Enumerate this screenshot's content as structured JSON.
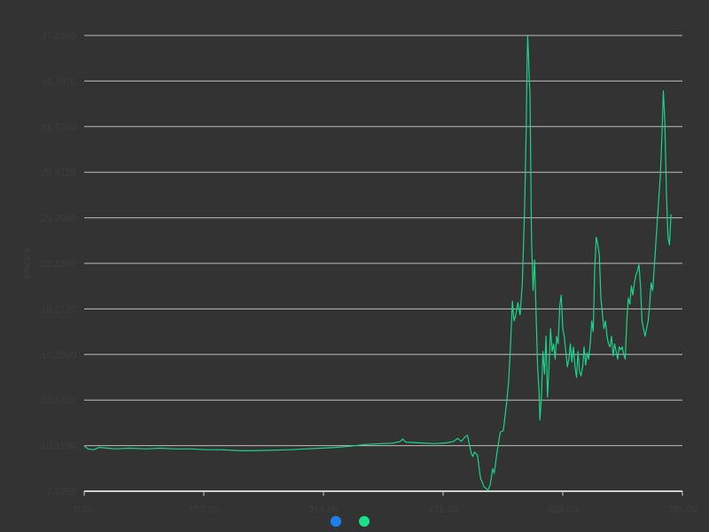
{
  "chart_data": {
    "type": "line",
    "title": "",
    "xlabel": "",
    "ylabel": "SPICE $",
    "xlim": [
      0,
      785
    ],
    "ylim": [
      7.3266,
      37.2386
    ],
    "grid": true,
    "y_ticks": [
      "7.3266",
      "10.3190",
      "13.3430",
      "16.3590",
      "19.2720",
      "22.3360",
      "25.2960",
      "28.3120",
      "31.3240",
      "34.2870",
      "37.2386"
    ],
    "x_ticks": [
      "0.00",
      "157.00",
      "314.00",
      "471.00",
      "628.00",
      "785.00"
    ],
    "legend": {
      "position": "bottom-center",
      "markers": [
        {
          "color": "#1a82f0"
        },
        {
          "color": "#19e08a"
        }
      ]
    },
    "colors": {
      "background": "#333333",
      "grid": "#bdbdbd",
      "line": "#19d48a",
      "tick_text": "#3d3d3d"
    },
    "series": [
      {
        "color": "#19d48a",
        "points": [
          [
            0,
            10.3
          ],
          [
            5,
            10.1
          ],
          [
            12,
            10.05
          ],
          [
            20,
            10.2
          ],
          [
            40,
            10.1
          ],
          [
            60,
            10.15
          ],
          [
            80,
            10.1
          ],
          [
            100,
            10.15
          ],
          [
            120,
            10.1
          ],
          [
            140,
            10.1
          ],
          [
            160,
            10.05
          ],
          [
            180,
            10.05
          ],
          [
            200,
            10.0
          ],
          [
            210,
            9.98
          ],
          [
            230,
            10.0
          ],
          [
            250,
            10.02
          ],
          [
            270,
            10.05
          ],
          [
            290,
            10.1
          ],
          [
            310,
            10.15
          ],
          [
            330,
            10.2
          ],
          [
            350,
            10.28
          ],
          [
            370,
            10.4
          ],
          [
            390,
            10.45
          ],
          [
            405,
            10.48
          ],
          [
            415,
            10.6
          ],
          [
            418,
            10.75
          ],
          [
            422,
            10.55
          ],
          [
            440,
            10.5
          ],
          [
            460,
            10.45
          ],
          [
            475,
            10.5
          ],
          [
            485,
            10.6
          ],
          [
            490,
            10.8
          ],
          [
            495,
            10.6
          ],
          [
            500,
            10.9
          ],
          [
            503,
            11.0
          ],
          [
            505,
            10.5
          ],
          [
            508,
            9.8
          ],
          [
            510,
            9.6
          ],
          [
            512,
            9.9
          ],
          [
            516,
            9.7
          ],
          [
            520,
            8.2
          ],
          [
            525,
            7.6
          ],
          [
            530,
            7.4
          ],
          [
            533,
            7.8
          ],
          [
            536,
            8.8
          ],
          [
            538,
            8.5
          ],
          [
            542,
            10.0
          ],
          [
            546,
            11.2
          ],
          [
            550,
            11.3
          ],
          [
            554,
            13.0
          ],
          [
            557,
            14.5
          ],
          [
            559,
            16.5
          ],
          [
            562,
            19.8
          ],
          [
            564,
            18.5
          ],
          [
            566,
            18.8
          ],
          [
            569,
            19.7
          ],
          [
            572,
            18.9
          ],
          [
            575,
            21.0
          ],
          [
            578,
            26.0
          ],
          [
            580,
            31.0
          ],
          [
            581,
            35.0
          ],
          [
            582,
            37.2
          ],
          [
            583,
            36.0
          ],
          [
            584,
            34.3
          ],
          [
            585,
            33.5
          ],
          [
            587,
            24.0
          ],
          [
            589,
            20.5
          ],
          [
            591,
            22.5
          ],
          [
            593,
            19.0
          ],
          [
            595,
            15.5
          ],
          [
            597,
            13.8
          ],
          [
            598,
            12.0
          ],
          [
            600,
            13.5
          ],
          [
            602,
            16.5
          ],
          [
            604,
            15.0
          ],
          [
            606,
            17.5
          ],
          [
            608,
            13.5
          ],
          [
            610,
            15.5
          ],
          [
            612,
            18.0
          ],
          [
            614,
            16.5
          ],
          [
            616,
            17.0
          ],
          [
            618,
            16.0
          ],
          [
            620,
            17.5
          ],
          [
            622,
            17.0
          ],
          [
            624,
            19.5
          ],
          [
            626,
            20.2
          ],
          [
            628,
            18.0
          ],
          [
            630,
            17.5
          ],
          [
            632,
            16.5
          ],
          [
            634,
            15.5
          ],
          [
            636,
            16.0
          ],
          [
            638,
            17.0
          ],
          [
            640,
            15.8
          ],
          [
            642,
            16.8
          ],
          [
            644,
            15.5
          ],
          [
            646,
            14.8
          ],
          [
            648,
            16.5
          ],
          [
            650,
            15.2
          ],
          [
            652,
            14.9
          ],
          [
            654,
            15.5
          ],
          [
            656,
            16.8
          ],
          [
            658,
            15.6
          ],
          [
            660,
            16.4
          ],
          [
            662,
            16.0
          ],
          [
            664,
            17.0
          ],
          [
            666,
            18.5
          ],
          [
            668,
            17.8
          ],
          [
            670,
            22.0
          ],
          [
            672,
            24.0
          ],
          [
            674,
            23.5
          ],
          [
            676,
            22.8
          ],
          [
            678,
            20.0
          ],
          [
            680,
            19.0
          ],
          [
            682,
            18.0
          ],
          [
            684,
            18.5
          ],
          [
            686,
            17.5
          ],
          [
            688,
            17.0
          ],
          [
            690,
            16.8
          ],
          [
            692,
            17.5
          ],
          [
            694,
            16.2
          ],
          [
            696,
            17.0
          ],
          [
            698,
            16.5
          ],
          [
            700,
            16.0
          ],
          [
            702,
            16.8
          ],
          [
            704,
            16.6
          ],
          [
            706,
            16.8
          ],
          [
            708,
            16.3
          ],
          [
            710,
            16.0
          ],
          [
            712,
            18.5
          ],
          [
            714,
            20.0
          ],
          [
            716,
            19.6
          ],
          [
            718,
            20.8
          ],
          [
            720,
            20.2
          ],
          [
            722,
            21.0
          ],
          [
            724,
            21.5
          ],
          [
            726,
            21.8
          ],
          [
            728,
            22.2
          ],
          [
            730,
            20.8
          ],
          [
            732,
            18.5
          ],
          [
            734,
            18.0
          ],
          [
            736,
            17.5
          ],
          [
            738,
            18.0
          ],
          [
            740,
            18.5
          ],
          [
            742,
            19.5
          ],
          [
            744,
            21.0
          ],
          [
            746,
            20.5
          ],
          [
            748,
            22.0
          ],
          [
            750,
            23.5
          ],
          [
            752,
            25.0
          ],
          [
            754,
            26.5
          ],
          [
            756,
            28.0
          ],
          [
            758,
            30.5
          ],
          [
            760,
            33.6
          ],
          [
            762,
            31.5
          ],
          [
            764,
            27.0
          ],
          [
            766,
            24.0
          ],
          [
            768,
            23.5
          ],
          [
            770,
            25.5
          ]
        ]
      }
    ]
  }
}
